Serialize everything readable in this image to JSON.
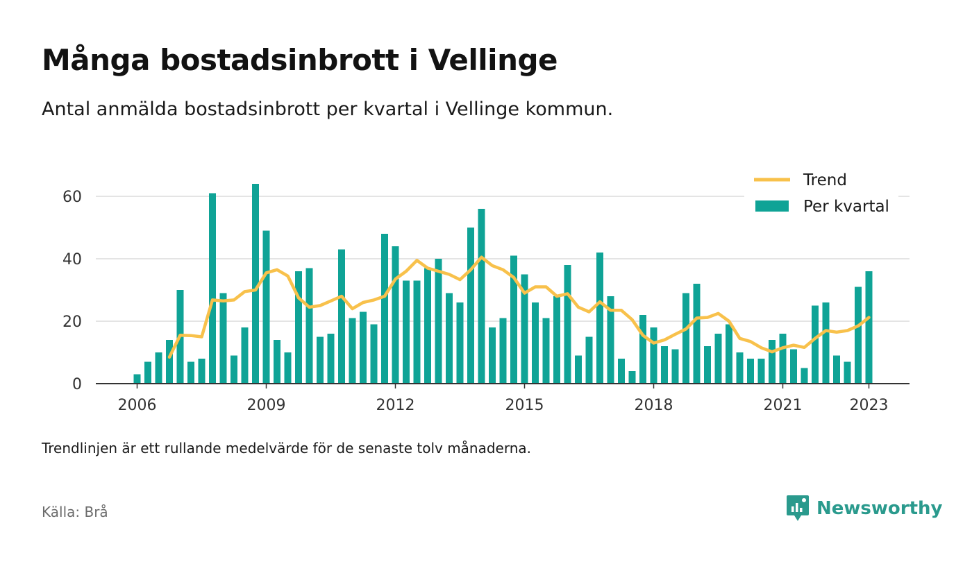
{
  "title": "Många bostadsinbrott i Vellinge",
  "subtitle": "Antal anmälda bostadsinbrott per kvartal i Vellinge kommun.",
  "note": "Trendlinjen är ett rullande medelvärde för de senaste tolv månaderna.",
  "source": "Källa: Brå",
  "brand": {
    "name": "Newsworthy",
    "icon": "newsworthy-logo-icon"
  },
  "colors": {
    "bars": "#0fa396",
    "trend": "#f8c14b",
    "grid": "#dcdcdc",
    "axis": "#333333"
  },
  "chart_data": {
    "type": "bar",
    "x_start": "2006",
    "x_step": "quarter",
    "x_ticks": [
      "2006",
      "2009",
      "2012",
      "2015",
      "2018",
      "2021",
      "2023"
    ],
    "y_ticks": [
      "0",
      "20",
      "40",
      "60"
    ],
    "ylim": [
      0,
      70
    ],
    "grid": true,
    "legend_position": "top-right",
    "series": [
      {
        "name": "Per kvartal",
        "kind": "bar",
        "values": [
          3,
          7,
          10,
          14,
          30,
          7,
          8,
          61,
          29,
          9,
          18,
          64,
          49,
          14,
          10,
          36,
          37,
          15,
          16,
          43,
          21,
          23,
          19,
          48,
          44,
          33,
          33,
          37,
          40,
          29,
          26,
          50,
          56,
          18,
          21,
          41,
          35,
          26,
          21,
          28,
          38,
          9,
          15,
          42,
          28,
          8,
          4,
          22,
          18,
          12,
          11,
          29,
          32,
          12,
          16,
          19,
          10,
          8,
          8,
          14,
          16,
          11,
          5,
          25,
          26,
          9,
          7,
          31,
          36
        ]
      },
      {
        "name": "Trend",
        "kind": "line",
        "start_index": 3,
        "values": [
          8.5,
          15.5,
          15.4,
          15,
          26.8,
          26.5,
          26.8,
          29.5,
          30,
          35.5,
          36.5,
          34.5,
          27.5,
          24.5,
          25,
          26.5,
          28,
          24,
          26,
          26.8,
          28,
          33.5,
          36,
          39.5,
          37,
          36,
          35,
          33.3,
          36.5,
          40.5,
          37.8,
          36.5,
          34,
          29,
          31,
          31,
          28,
          28.8,
          24.5,
          23,
          26.2,
          23.5,
          23.5,
          20.5,
          15.5,
          13,
          14,
          15.8,
          17.5,
          21,
          21.2,
          22.5,
          20,
          14.5,
          13.5,
          11.5,
          10.2,
          11.5,
          12.3,
          11.6,
          14.5,
          17,
          16.5,
          17,
          18.5,
          21.2
        ]
      }
    ]
  }
}
